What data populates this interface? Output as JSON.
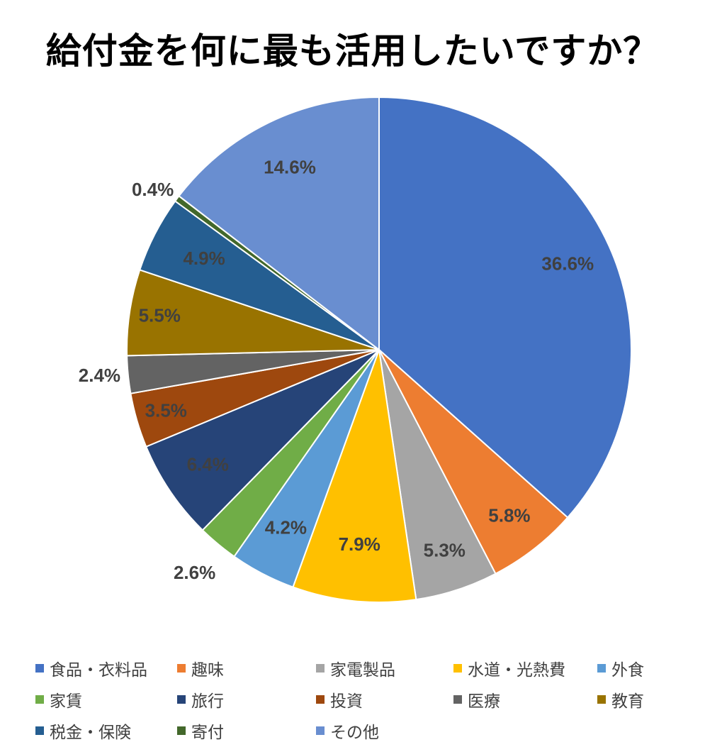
{
  "chart_data": {
    "type": "pie",
    "title": "給付金を何に最も活用したいですか？",
    "slices": [
      {
        "name": "食品・衣料品",
        "value": 36.6,
        "label": "36.6%",
        "color": "#4472C4"
      },
      {
        "name": "趣味",
        "value": 5.8,
        "label": "5.8%",
        "color": "#ED7D31"
      },
      {
        "name": "家電製品",
        "value": 5.3,
        "label": "5.3%",
        "color": "#A5A5A5"
      },
      {
        "name": "水道・光熱費",
        "value": 7.9,
        "label": "7.9%",
        "color": "#FFC000"
      },
      {
        "name": "外食",
        "value": 4.2,
        "label": "4.2%",
        "color": "#5B9BD5"
      },
      {
        "name": "家賃",
        "value": 2.6,
        "label": "2.6%",
        "color": "#70AD47"
      },
      {
        "name": "旅行",
        "value": 6.4,
        "label": "6.4%",
        "color": "#264478"
      },
      {
        "name": "投資",
        "value": 3.5,
        "label": "3.5%",
        "color": "#9E480E"
      },
      {
        "name": "医療",
        "value": 2.4,
        "label": "2.4%",
        "color": "#636363"
      },
      {
        "name": "教育",
        "value": 5.5,
        "label": "5.5%",
        "color": "#997300"
      },
      {
        "name": "税金・保険",
        "value": 4.9,
        "label": "4.9%",
        "color": "#255E91"
      },
      {
        "name": "寄付",
        "value": 0.4,
        "label": "0.4%",
        "color": "#43682B"
      },
      {
        "name": "その他",
        "value": 14.6,
        "label": "14.6%",
        "color": "#698ED0"
      }
    ],
    "legend_position": "bottom"
  }
}
